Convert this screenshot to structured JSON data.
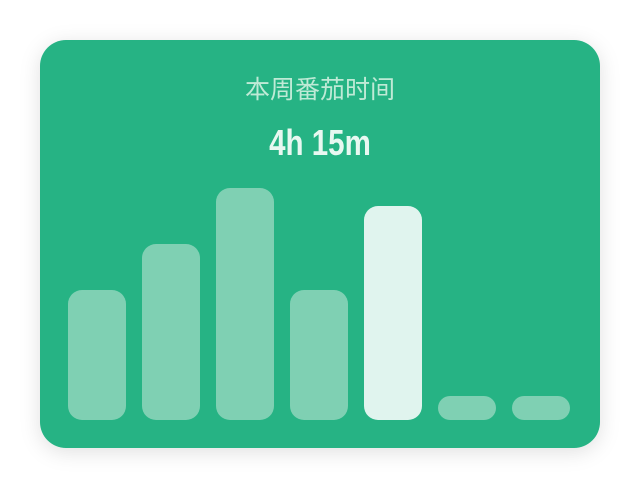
{
  "title": "本周番茄时间",
  "total": "4h 15m",
  "chart_data": {
    "type": "bar",
    "values": [
      130,
      176,
      232,
      130,
      214,
      24,
      24
    ],
    "ylim": [
      0,
      232
    ],
    "color": "#7fd0b3",
    "highlight_index": 4,
    "highlight_color": "#e0f4ee"
  }
}
